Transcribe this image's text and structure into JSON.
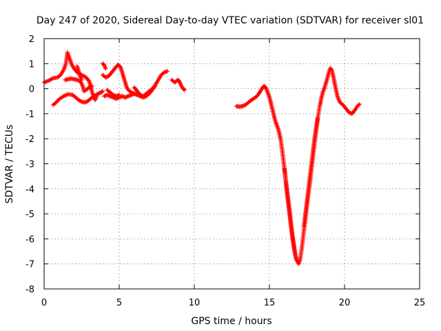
{
  "chart_data": {
    "type": "scatter",
    "title": "Day 247 of 2020, Sidereal Day-to-day VTEC variation (SDTVAR) for receiver sl01",
    "xlabel": "GPS time / hours",
    "ylabel": "SDTVAR / TECUs",
    "xlim": [
      0,
      25
    ],
    "ylim": [
      -8,
      2
    ],
    "xticks": [
      0,
      5,
      10,
      15,
      20,
      25
    ],
    "yticks": [
      -8,
      -7,
      -6,
      -5,
      -4,
      -3,
      -2,
      -1,
      0,
      1,
      2
    ],
    "grid": true,
    "marker": "plus",
    "color": "#ff0000",
    "series": [
      {
        "segments": [
          [
            [
              0.0,
              0.25
            ],
            [
              0.3,
              0.32
            ],
            [
              0.6,
              0.42
            ],
            [
              0.9,
              0.45
            ],
            [
              1.1,
              0.55
            ],
            [
              1.3,
              0.75
            ],
            [
              1.45,
              1.0
            ],
            [
              1.55,
              1.45
            ],
            [
              1.7,
              1.2
            ],
            [
              1.85,
              0.95
            ],
            [
              2.0,
              0.8
            ],
            [
              2.2,
              0.65
            ],
            [
              2.5,
              0.55
            ],
            [
              2.8,
              0.45
            ],
            [
              3.0,
              0.3
            ],
            [
              3.1,
              0.1
            ],
            [
              3.2,
              -0.15
            ],
            [
              3.3,
              -0.35
            ],
            [
              3.4,
              -0.45
            ],
            [
              3.5,
              -0.3
            ]
          ],
          [
            [
              0.6,
              -0.65
            ],
            [
              0.8,
              -0.55
            ],
            [
              1.0,
              -0.42
            ],
            [
              1.3,
              -0.3
            ],
            [
              1.6,
              -0.22
            ],
            [
              1.9,
              -0.25
            ],
            [
              2.1,
              -0.35
            ],
            [
              2.3,
              -0.45
            ],
            [
              2.5,
              -0.52
            ],
            [
              2.7,
              -0.55
            ],
            [
              2.9,
              -0.5
            ],
            [
              3.1,
              -0.4
            ],
            [
              3.3,
              -0.3
            ],
            [
              3.6,
              -0.2
            ],
            [
              3.8,
              -0.15
            ],
            [
              3.9,
              -0.1
            ]
          ],
          [
            [
              1.4,
              0.35
            ],
            [
              1.6,
              0.38
            ],
            [
              1.8,
              0.4
            ],
            [
              2.0,
              0.38
            ],
            [
              2.2,
              0.35
            ],
            [
              2.4,
              0.3
            ],
            [
              2.5,
              0.2
            ],
            [
              2.6,
              0.05
            ],
            [
              2.65,
              -0.1
            ],
            [
              2.8,
              -0.05
            ],
            [
              3.0,
              0.05
            ],
            [
              3.2,
              0.1
            ]
          ],
          [
            [
              2.2,
              0.9
            ],
            [
              2.3,
              0.7
            ],
            [
              2.4,
              0.5
            ],
            [
              2.5,
              0.35
            ]
          ],
          [
            [
              3.9,
              1.0
            ],
            [
              4.0,
              0.95
            ],
            [
              4.1,
              0.8
            ]
          ],
          [
            [
              4.0,
              -0.3
            ],
            [
              4.2,
              -0.25
            ],
            [
              4.4,
              -0.3
            ],
            [
              4.6,
              -0.35
            ],
            [
              4.8,
              -0.4
            ],
            [
              5.0,
              -0.35
            ],
            [
              5.2,
              -0.3
            ],
            [
              5.4,
              -0.35
            ],
            [
              5.6,
              -0.3
            ],
            [
              5.8,
              -0.25
            ],
            [
              6.0,
              -0.2
            ],
            [
              6.2,
              -0.25
            ],
            [
              6.4,
              -0.3
            ],
            [
              6.6,
              -0.35
            ],
            [
              6.8,
              -0.3
            ],
            [
              7.0,
              -0.2
            ],
            [
              7.2,
              -0.05
            ],
            [
              7.4,
              0.15
            ],
            [
              7.6,
              0.35
            ],
            [
              7.8,
              0.55
            ],
            [
              8.0,
              0.65
            ],
            [
              8.2,
              0.7
            ]
          ],
          [
            [
              3.9,
              0.55
            ],
            [
              4.1,
              0.45
            ],
            [
              4.3,
              0.5
            ],
            [
              4.5,
              0.65
            ],
            [
              4.7,
              0.8
            ],
            [
              4.9,
              0.95
            ],
            [
              5.0,
              0.92
            ],
            [
              5.1,
              0.85
            ],
            [
              5.2,
              0.65
            ],
            [
              5.3,
              0.45
            ],
            [
              5.4,
              0.25
            ],
            [
              5.5,
              0.05
            ],
            [
              5.6,
              -0.05
            ],
            [
              5.8,
              -0.15
            ],
            [
              6.0,
              -0.2
            ]
          ],
          [
            [
              4.2,
              -0.05
            ],
            [
              4.4,
              -0.15
            ],
            [
              4.6,
              -0.25
            ],
            [
              4.8,
              -0.3
            ],
            [
              5.0,
              -0.25
            ]
          ],
          [
            [
              6.0,
              0.05
            ],
            [
              6.2,
              -0.1
            ],
            [
              6.4,
              -0.25
            ],
            [
              6.6,
              -0.3
            ],
            [
              6.8,
              -0.2
            ],
            [
              7.0,
              -0.1
            ],
            [
              7.2,
              0.0
            ],
            [
              7.4,
              0.1
            ]
          ],
          [
            [
              8.5,
              0.35
            ],
            [
              8.7,
              0.25
            ],
            [
              8.9,
              0.35
            ],
            [
              9.0,
              0.3
            ],
            [
              9.1,
              0.15
            ],
            [
              9.25,
              0.0
            ],
            [
              9.35,
              -0.05
            ]
          ],
          [
            [
              12.8,
              -0.7
            ],
            [
              13.0,
              -0.72
            ],
            [
              13.2,
              -0.7
            ],
            [
              13.4,
              -0.65
            ],
            [
              13.6,
              -0.55
            ],
            [
              13.8,
              -0.45
            ],
            [
              14.0,
              -0.38
            ],
            [
              14.2,
              -0.28
            ],
            [
              14.4,
              -0.1
            ],
            [
              14.55,
              0.05
            ],
            [
              14.65,
              0.1
            ],
            [
              14.75,
              0.05
            ],
            [
              14.85,
              -0.1
            ],
            [
              14.95,
              -0.25
            ],
            [
              15.05,
              -0.45
            ],
            [
              15.15,
              -0.7
            ],
            [
              15.25,
              -0.95
            ],
            [
              15.35,
              -1.2
            ],
            [
              15.45,
              -1.4
            ],
            [
              15.55,
              -1.55
            ],
            [
              15.65,
              -1.75
            ],
            [
              15.75,
              -2.05
            ],
            [
              15.85,
              -2.45
            ],
            [
              15.95,
              -2.95
            ],
            [
              16.05,
              -3.45
            ],
            [
              16.15,
              -3.95
            ],
            [
              16.25,
              -4.45
            ],
            [
              16.35,
              -4.95
            ],
            [
              16.45,
              -5.45
            ],
            [
              16.55,
              -5.95
            ],
            [
              16.65,
              -6.35
            ],
            [
              16.75,
              -6.7
            ],
            [
              16.85,
              -6.9
            ],
            [
              16.95,
              -7.0
            ],
            [
              17.05,
              -6.8
            ],
            [
              17.15,
              -6.4
            ],
            [
              17.25,
              -5.9
            ],
            [
              17.35,
              -5.4
            ],
            [
              17.45,
              -4.9
            ],
            [
              17.55,
              -4.4
            ],
            [
              17.65,
              -3.95
            ],
            [
              17.75,
              -3.45
            ],
            [
              17.85,
              -2.95
            ],
            [
              17.95,
              -2.45
            ],
            [
              18.05,
              -1.95
            ],
            [
              18.15,
              -1.5
            ],
            [
              18.25,
              -1.05
            ],
            [
              18.35,
              -0.7
            ],
            [
              18.45,
              -0.4
            ],
            [
              18.55,
              -0.15
            ],
            [
              18.7,
              0.1
            ],
            [
              18.85,
              0.4
            ],
            [
              18.95,
              0.65
            ],
            [
              19.05,
              0.82
            ],
            [
              19.15,
              0.75
            ],
            [
              19.25,
              0.5
            ],
            [
              19.35,
              0.2
            ],
            [
              19.45,
              -0.1
            ],
            [
              19.55,
              -0.35
            ],
            [
              19.7,
              -0.55
            ],
            [
              19.9,
              -0.65
            ],
            [
              20.1,
              -0.8
            ],
            [
              20.3,
              -0.95
            ],
            [
              20.5,
              -1.0
            ],
            [
              20.7,
              -0.85
            ],
            [
              20.85,
              -0.7
            ],
            [
              21.0,
              -0.62
            ]
          ],
          [
            [
              16.0,
              -3.2
            ],
            [
              16.1,
              -3.8
            ],
            [
              16.2,
              -4.3
            ],
            [
              16.3,
              -4.8
            ],
            [
              16.4,
              -5.3
            ],
            [
              16.5,
              -5.8
            ],
            [
              16.6,
              -6.2
            ],
            [
              16.7,
              -6.6
            ],
            [
              16.8,
              -6.85
            ]
          ],
          [
            [
              17.3,
              -5.5
            ],
            [
              17.4,
              -5.0
            ],
            [
              17.5,
              -4.5
            ],
            [
              17.6,
              -4.0
            ],
            [
              17.7,
              -3.5
            ],
            [
              17.8,
              -3.0
            ],
            [
              17.9,
              -2.5
            ],
            [
              18.0,
              -2.0
            ],
            [
              18.1,
              -1.6
            ],
            [
              18.2,
              -1.2
            ]
          ]
        ]
      }
    ]
  }
}
